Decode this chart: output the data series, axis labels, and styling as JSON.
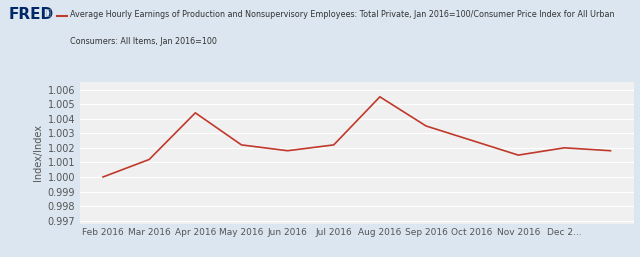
{
  "ylabel": "Index/Index",
  "x_labels": [
    "Feb 2016",
    "Mar 2016",
    "Apr 2016",
    "May 2016",
    "Jun 2016",
    "Jul 2016",
    "Aug 2016",
    "Sep 2016",
    "Oct 2016",
    "Nov 2016",
    "Dec 2..."
  ],
  "x_values": [
    1,
    2,
    3,
    4,
    5,
    6,
    7,
    8,
    9,
    10,
    11,
    12
  ],
  "y_values": [
    1.0,
    1.0012,
    1.0044,
    1.0022,
    1.0018,
    1.0022,
    1.0055,
    1.0035,
    1.0025,
    1.0015,
    1.002,
    1.0018
  ],
  "ylim": [
    0.9968,
    1.0065
  ],
  "yticks": [
    0.997,
    0.998,
    0.999,
    1.0,
    1.001,
    1.002,
    1.003,
    1.004,
    1.005,
    1.006
  ],
  "line_color": "#c0392b",
  "bg_color": "#dce6f0",
  "plot_bg": "#f0f0f0",
  "grid_color": "#ffffff",
  "axis_label_color": "#555555",
  "tick_color": "#555555",
  "fred_color_blue": "#002868",
  "fred_color_red": "#BF0000",
  "header_line1": "Average Hourly Earnings of Production and Nonsupervisory Employees: Total Private, Jan 2016=100/Consumer Price Index for All Urban",
  "header_line2": "Consumers: All Items, Jan 2016=100"
}
